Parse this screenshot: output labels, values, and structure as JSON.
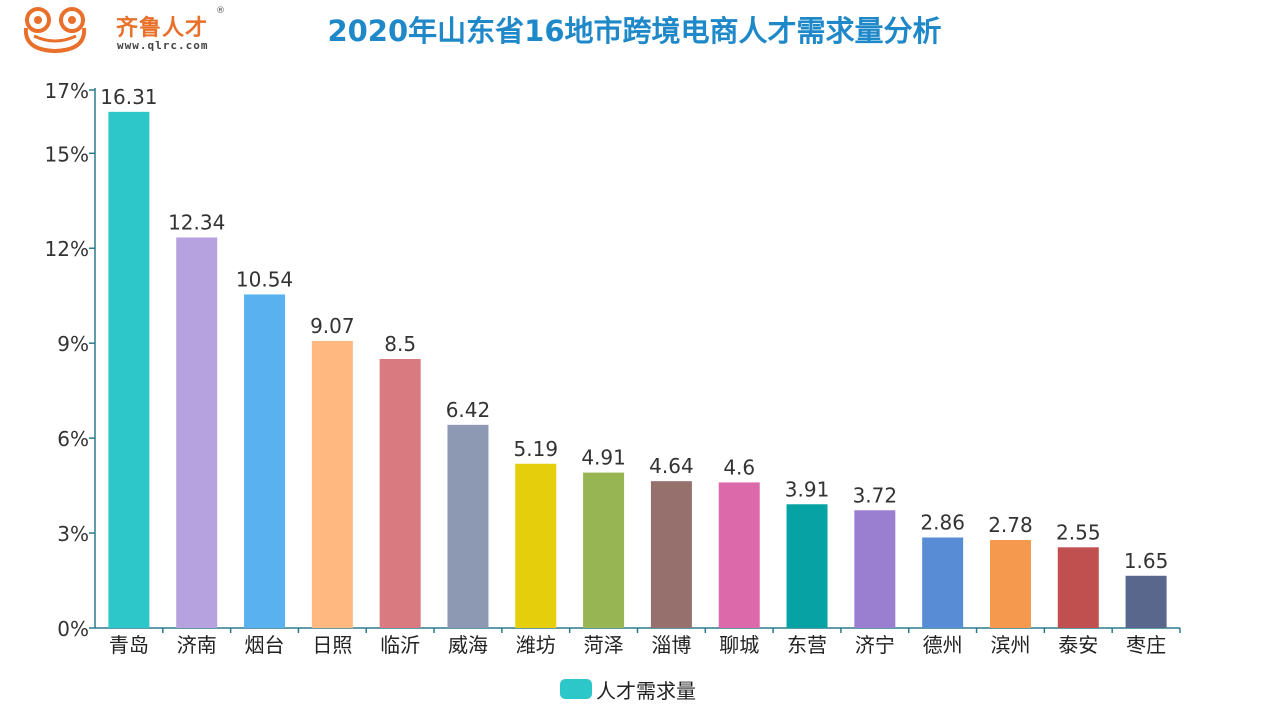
{
  "logo": {
    "brand": "齐鲁人才",
    "url": "www.qlrc.com",
    "reg": "®"
  },
  "title": "2020年山东省16地市跨境电商人才需求量分析",
  "legend": {
    "label": "人才需求量",
    "color": "#2ec7c9"
  },
  "chart_data": {
    "type": "bar",
    "title": "2020年山东省16地市跨境电商人才需求量分析",
    "categories": [
      "青岛",
      "济南",
      "烟台",
      "日照",
      "临沂",
      "威海",
      "潍坊",
      "菏泽",
      "淄博",
      "聊城",
      "东营",
      "济宁",
      "德州",
      "滨州",
      "泰安",
      "枣庄"
    ],
    "series": [
      {
        "name": "人才需求量",
        "values": [
          16.31,
          12.34,
          10.54,
          9.07,
          8.5,
          6.42,
          5.19,
          4.91,
          4.64,
          4.6,
          3.91,
          3.72,
          2.86,
          2.78,
          2.55,
          1.65
        ]
      }
    ],
    "data_labels": [
      "16.31",
      "12.34",
      "10.54",
      "9.07",
      "8.5",
      "6.42",
      "5.19",
      "4.91",
      "4.64",
      "4.6",
      "3.91",
      "3.72",
      "2.86",
      "2.78",
      "2.55",
      "1.65"
    ],
    "bar_colors": [
      "#2ec7c9",
      "#b6a2de",
      "#5ab1ef",
      "#ffb980",
      "#d87a80",
      "#8d98b3",
      "#e5cf0d",
      "#97b552",
      "#95706d",
      "#dc69aa",
      "#07a2a4",
      "#9a7fd1",
      "#588dd5",
      "#f5994e",
      "#c05050",
      "#59678c"
    ],
    "ylim": [
      0,
      17
    ],
    "yticks": [
      0,
      3,
      6,
      9,
      12,
      15,
      17
    ],
    "ytick_labels": [
      "0%",
      "3%",
      "6%",
      "9%",
      "12%",
      "15%",
      "17%"
    ],
    "xlabel": "",
    "ylabel": "",
    "grid": false,
    "legend_position": "bottom-center"
  }
}
